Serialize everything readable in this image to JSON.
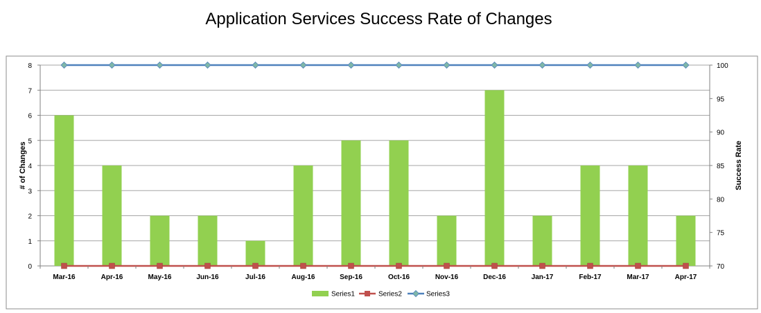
{
  "chart_data": {
    "type": "bar",
    "title": "Application Services Success Rate of Changes",
    "categories": [
      "Mar-16",
      "Apr-16",
      "May-16",
      "Jun-16",
      "Jul-16",
      "Aug-16",
      "Sep-16",
      "Oct-16",
      "Nov-16",
      "Dec-16",
      "Jan-17",
      "Feb-17",
      "Mar-17",
      "Apr-17"
    ],
    "ylabel": "# of Changes",
    "y2label": "Success Rate",
    "ylim": [
      0,
      8
    ],
    "y2lim": [
      70,
      100
    ],
    "yticks": [
      "0",
      "1",
      "2",
      "3",
      "4",
      "5",
      "6",
      "7",
      "8"
    ],
    "y2ticks": [
      "70",
      "75",
      "80",
      "85",
      "90",
      "95",
      "100"
    ],
    "grid": true,
    "legend_position": "bottom",
    "series": [
      {
        "name": "Series1",
        "type": "bar",
        "axis": "left",
        "color": "#92d050",
        "values": [
          6,
          4,
          2,
          2,
          1,
          4,
          5,
          5,
          2,
          7,
          2,
          4,
          4,
          2
        ]
      },
      {
        "name": "Series2",
        "type": "line",
        "axis": "left",
        "marker": "square",
        "color": "#c0504d",
        "values": [
          0,
          0,
          0,
          0,
          0,
          0,
          0,
          0,
          0,
          0,
          0,
          0,
          0,
          0
        ]
      },
      {
        "name": "Series3",
        "type": "line",
        "axis": "right",
        "marker": "diamond",
        "color": "#4f81bd",
        "values": [
          100,
          100,
          100,
          100,
          100,
          100,
          100,
          100,
          100,
          100,
          100,
          100,
          100,
          100
        ]
      }
    ]
  }
}
